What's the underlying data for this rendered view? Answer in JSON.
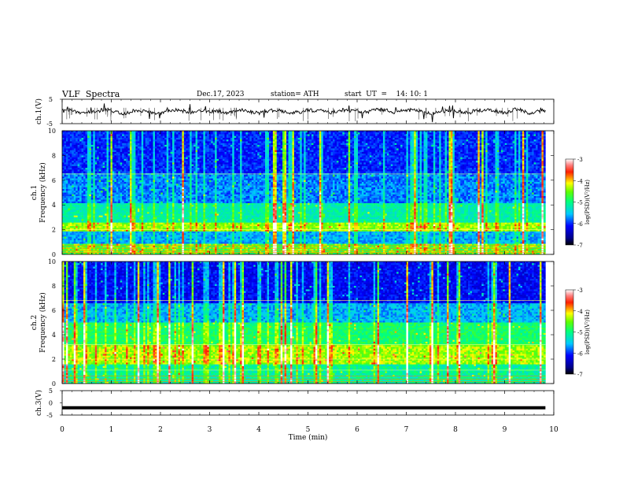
{
  "header": {
    "title": "VLF  Spectra",
    "date": "Dec.17, 2023",
    "station": "station= ATH",
    "start": "start  UT  =    14: 10: 1"
  },
  "chart_data": [
    {
      "type": "line",
      "name": "waveform-ch1",
      "ylabel": "ch.1(V)",
      "ylim": [
        -5,
        5
      ],
      "yticks": [
        "5",
        "-5"
      ],
      "xlim": [
        0,
        10
      ],
      "description_level": 0.0,
      "color": "#000000"
    },
    {
      "type": "heatmap",
      "name": "spectrogram-ch1",
      "ylabel_top": "ch.1",
      "ylabel": "Frequency  (kHz)",
      "ylim": [
        0,
        10
      ],
      "yticks": [
        "0",
        "2",
        "4",
        "6",
        "8",
        "10"
      ],
      "xlim": [
        0,
        10
      ],
      "colorbar": {
        "label": "log(PSD)(V²/Hz)",
        "ticks": [
          "-3",
          "-4",
          "-5",
          "-6",
          "-7"
        ],
        "range": [
          -7,
          -3
        ]
      }
    },
    {
      "type": "heatmap",
      "name": "spectrogram-ch2",
      "ylabel_top": "ch.2",
      "ylabel": "Frequency  (kHz)",
      "ylim": [
        0,
        10
      ],
      "yticks": [
        "0",
        "2",
        "4",
        "6",
        "8",
        "10"
      ],
      "xlim": [
        0,
        10
      ],
      "colorbar": {
        "label": "log(PSD)(V²/Hz)",
        "ticks": [
          "-3",
          "-4",
          "-5",
          "-6",
          "-7"
        ],
        "range": [
          -7,
          -3
        ]
      }
    },
    {
      "type": "line",
      "name": "waveform-ch3",
      "ylabel": "ch.3(V)",
      "ylim": [
        -5,
        5
      ],
      "yticks": [
        "5",
        "0",
        "-5"
      ],
      "xlim": [
        0,
        10
      ],
      "level": -2.0,
      "color": "#000000"
    }
  ],
  "xaxis": {
    "label": "Time  (min)",
    "ticks": [
      "0",
      "1",
      "2",
      "3",
      "4",
      "5",
      "6",
      "7",
      "8",
      "9",
      "10"
    ],
    "data_end": 9.83
  }
}
